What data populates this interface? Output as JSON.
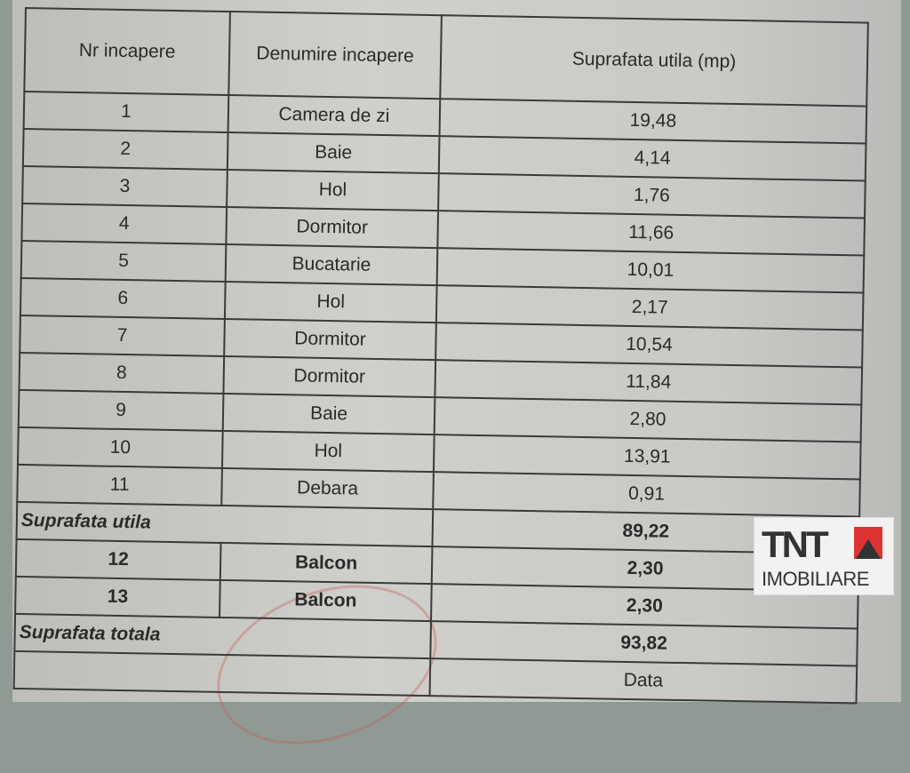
{
  "table": {
    "headers": [
      "Nr incapere",
      "Denumire incapere",
      "Suprafata utila (mp)"
    ],
    "rows": [
      {
        "nr": "1",
        "name": "Camera de zi",
        "area": "19,48"
      },
      {
        "nr": "2",
        "name": "Baie",
        "area": "4,14"
      },
      {
        "nr": "3",
        "name": "Hol",
        "area": "1,76"
      },
      {
        "nr": "4",
        "name": "Dormitor",
        "area": "11,66"
      },
      {
        "nr": "5",
        "name": "Bucatarie",
        "area": "10,01"
      },
      {
        "nr": "6",
        "name": "Hol",
        "area": "2,17"
      },
      {
        "nr": "7",
        "name": "Dormitor",
        "area": "10,54"
      },
      {
        "nr": "8",
        "name": "Dormitor",
        "area": "11,84"
      },
      {
        "nr": "9",
        "name": "Baie",
        "area": "2,80"
      },
      {
        "nr": "10",
        "name": "Hol",
        "area": "13,91"
      },
      {
        "nr": "11",
        "name": "Debara",
        "area": "0,91"
      }
    ],
    "subtotal": {
      "label": "Suprafata utila",
      "value": "89,22"
    },
    "extra_rows": [
      {
        "nr": "12",
        "name": "Balcon",
        "area": "2,30"
      },
      {
        "nr": "13",
        "name": "Balcon",
        "area": "2,30"
      }
    ],
    "total": {
      "label": "Suprafata totala",
      "value": "93,82"
    },
    "footer": {
      "date_label": "Data"
    }
  },
  "logo": {
    "text": "TNT",
    "subtext": "IMOBILIARE",
    "colors": {
      "red": "#d33333",
      "dark": "#333333"
    }
  }
}
